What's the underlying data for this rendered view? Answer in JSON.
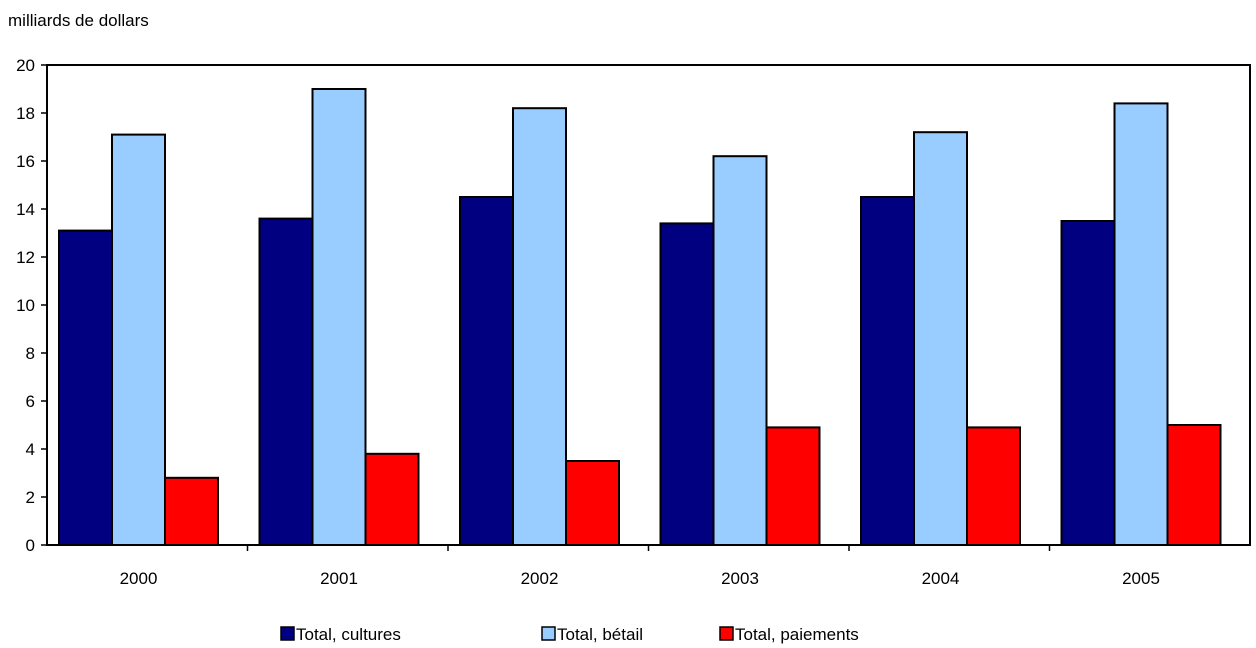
{
  "chart_data": {
    "type": "bar",
    "ylabel": "milliards de dollars",
    "ylim": [
      0,
      20
    ],
    "yticks": [
      0,
      2,
      4,
      6,
      8,
      10,
      12,
      14,
      16,
      18,
      20
    ],
    "categories": [
      "2000",
      "2001",
      "2002",
      "2003",
      "2004",
      "2005"
    ],
    "series": [
      {
        "name": "Total, cultures",
        "color": "#000080",
        "values": [
          13.1,
          13.6,
          14.5,
          13.4,
          14.5,
          13.5
        ]
      },
      {
        "name": "Total, bétail",
        "color": "#99ccff",
        "values": [
          17.1,
          19.0,
          18.2,
          16.2,
          17.2,
          18.4
        ]
      },
      {
        "name": "Total, paiements",
        "color": "#ff0000",
        "values": [
          2.8,
          3.8,
          3.5,
          4.9,
          4.9,
          5.0
        ]
      }
    ],
    "grid": false,
    "legend_position": "bottom"
  }
}
